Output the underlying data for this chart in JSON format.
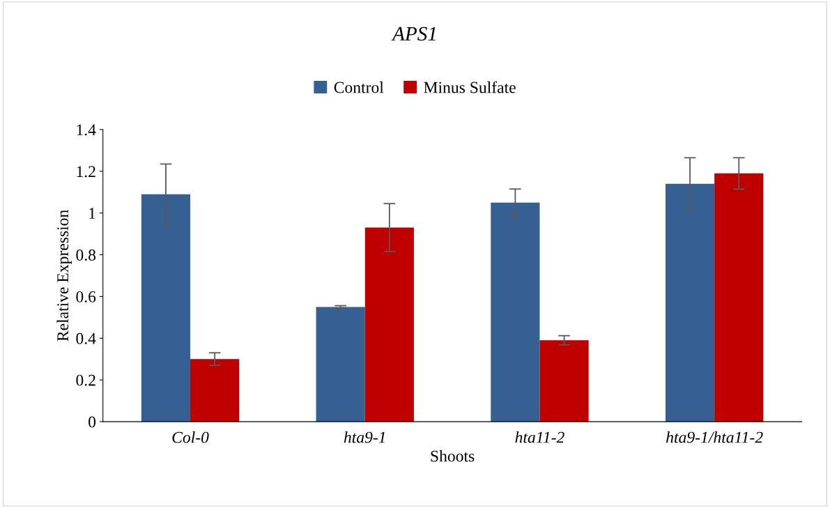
{
  "chart_data": {
    "type": "bar",
    "title": "APS1",
    "xlabel": "Shoots",
    "ylabel": "Relative Expression",
    "categories": [
      "Col-0",
      "hta9-1",
      "hta11-2",
      "hta9-1/hta11-2"
    ],
    "series": [
      {
        "name": "Control",
        "color": "#366092",
        "values": [
          1.09,
          0.55,
          1.05,
          1.14
        ],
        "errors": [
          0.145,
          0.006,
          0.065,
          0.125
        ]
      },
      {
        "name": "Minus Sulfate",
        "color": "#c00000",
        "values": [
          0.3,
          0.93,
          0.39,
          1.19
        ],
        "errors": [
          0.03,
          0.115,
          0.022,
          0.075
        ]
      }
    ],
    "ylim": [
      0,
      1.4
    ],
    "yticks": [
      0,
      {
        "value": 0.2,
        "label": "0.2"
      },
      {
        "value": 0.4,
        "label": "0.4"
      },
      {
        "value": 0.6,
        "label": "0.6"
      },
      {
        "value": 0.8,
        "label": "0.8"
      },
      1,
      {
        "value": 1.2,
        "label": "1.2"
      },
      {
        "value": 1.4,
        "label": "1.4"
      }
    ],
    "grid": false,
    "legend": "top"
  }
}
